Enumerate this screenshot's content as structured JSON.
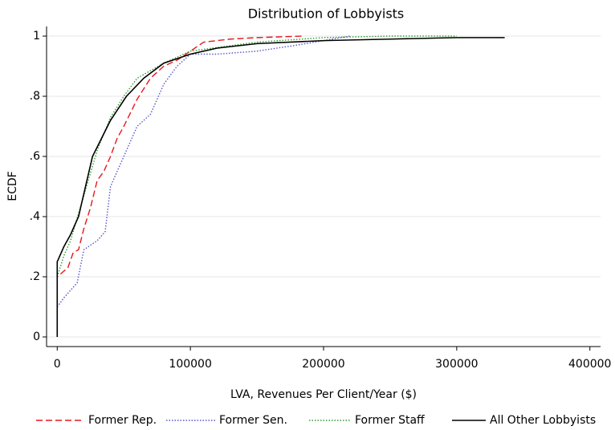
{
  "chart_data": {
    "type": "line",
    "title": "Distribution of Lobbyists",
    "x_label": "LVA, Revenues Per Client/Year ($)",
    "y_label": "ECDF",
    "xlim": [
      -8000,
      408000
    ],
    "xticks": [
      0,
      100000,
      200000,
      300000,
      400000
    ],
    "ylim": [
      -0.032,
      1.032
    ],
    "yticks": [
      0,
      {
        "value": 0.2,
        "label": ".2"
      },
      {
        "value": 0.4,
        "label": ".4"
      },
      {
        "value": 0.6,
        "label": ".6"
      },
      {
        "value": 0.8,
        "label": ".8"
      },
      1
    ],
    "grid": true,
    "legend": "bottom",
    "series": [
      {
        "name": "Former Rep.",
        "color": "#e8161b",
        "style": "dashed",
        "x": [
          0,
          0,
          8000,
          12000,
          16000,
          20000,
          25000,
          30000,
          35000,
          40000,
          45000,
          50000,
          60000,
          70000,
          80000,
          90000,
          100000,
          110000,
          130000,
          150000,
          185000
        ],
        "values": [
          0.15,
          0.2,
          0.23,
          0.28,
          0.29,
          0.36,
          0.43,
          0.52,
          0.55,
          0.6,
          0.66,
          0.7,
          0.79,
          0.86,
          0.9,
          0.92,
          0.95,
          0.98,
          0.99,
          0.995,
          1
        ]
      },
      {
        "name": "Former Sen.",
        "color": "#5555cc",
        "style": "dotted",
        "x": [
          0,
          5000,
          15000,
          20000,
          30000,
          36000,
          40000,
          50000,
          60000,
          70000,
          80000,
          90000,
          100000,
          120000,
          150000,
          180000,
          200000,
          220000
        ],
        "values": [
          0.1,
          0.13,
          0.18,
          0.29,
          0.32,
          0.35,
          0.5,
          0.6,
          0.7,
          0.74,
          0.84,
          0.9,
          0.94,
          0.94,
          0.95,
          0.97,
          0.985,
          1
        ]
      },
      {
        "name": "Former Staff",
        "color": "#2e9b2e",
        "style": "dotted",
        "x": [
          0,
          5000,
          10000,
          20000,
          30000,
          40000,
          50000,
          60000,
          80000,
          100000,
          150000,
          200000,
          250000,
          300000
        ],
        "values": [
          0.2,
          0.27,
          0.32,
          0.47,
          0.62,
          0.73,
          0.8,
          0.86,
          0.91,
          0.95,
          0.98,
          0.995,
          1,
          1
        ]
      },
      {
        "name": "All Other Lobbyists",
        "color": "#000000",
        "style": "solid",
        "x": [
          0,
          0,
          5000,
          10000,
          16000,
          26500,
          40000,
          52000,
          65000,
          80000,
          100000,
          120000,
          150000,
          200000,
          250000,
          300000,
          336000
        ],
        "values": [
          0,
          0.25,
          0.3,
          0.34,
          0.4,
          0.6,
          0.72,
          0.8,
          0.86,
          0.91,
          0.94,
          0.96,
          0.975,
          0.985,
          0.99,
          0.995,
          0.995
        ]
      }
    ]
  }
}
